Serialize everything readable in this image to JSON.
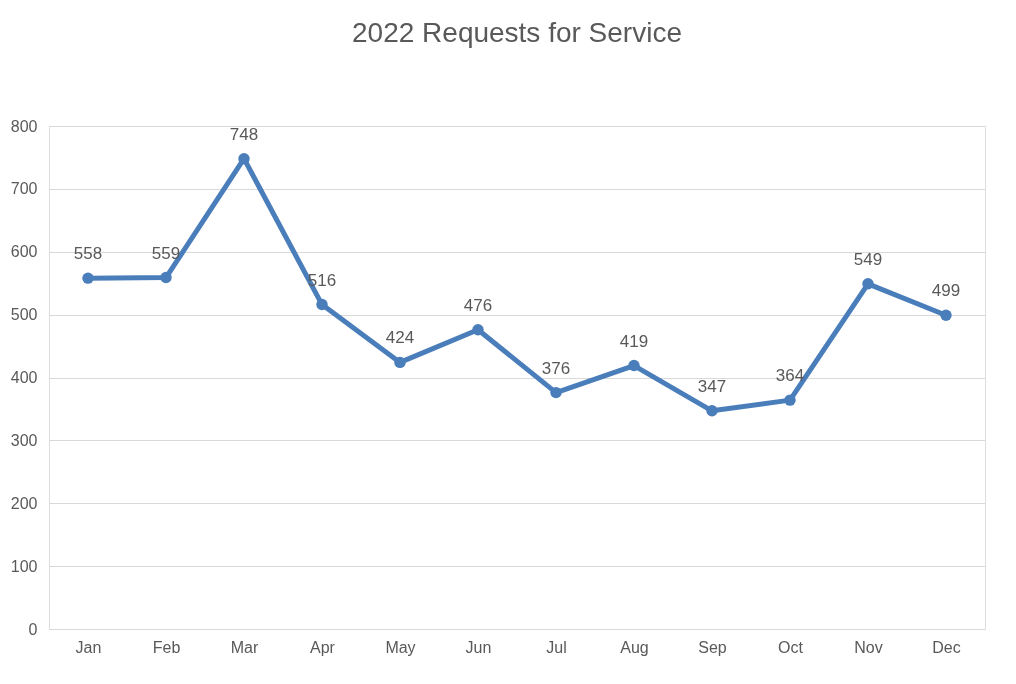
{
  "chart_data": {
    "type": "line",
    "title": "2022 Requests for Service",
    "categories": [
      "Jan",
      "Feb",
      "Mar",
      "Apr",
      "May",
      "Jun",
      "Jul",
      "Aug",
      "Sep",
      "Oct",
      "Nov",
      "Dec"
    ],
    "series": [
      {
        "color": "#4a7ebb",
        "values": [
          558,
          559,
          748,
          516,
          424,
          476,
          376,
          419,
          347,
          364,
          549,
          499
        ]
      }
    ],
    "ylim": [
      0,
      800
    ],
    "yticks": [
      0,
      100,
      200,
      300,
      400,
      500,
      600,
      700,
      800
    ],
    "grid": "y",
    "marker": "circle",
    "line_style": "solid",
    "data_labels": true
  }
}
